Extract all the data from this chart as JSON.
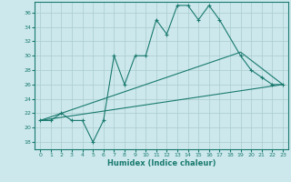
{
  "xlabel": "Humidex (Indice chaleur)",
  "xlim": [
    -0.5,
    23.5
  ],
  "ylim": [
    17,
    37.5
  ],
  "yticks": [
    18,
    20,
    22,
    24,
    26,
    28,
    30,
    32,
    34,
    36
  ],
  "xticks": [
    0,
    1,
    2,
    3,
    4,
    5,
    6,
    7,
    8,
    9,
    10,
    11,
    12,
    13,
    14,
    15,
    16,
    17,
    18,
    19,
    20,
    21,
    22,
    23
  ],
  "background_color": "#cce8ed",
  "grid_color": "#aacccc",
  "line_color": "#1a7a6e",
  "line1_x": [
    0,
    1,
    2,
    3,
    4,
    5,
    6,
    7,
    8,
    9,
    10,
    11,
    12,
    13,
    14,
    15,
    16,
    17,
    19,
    20,
    21,
    22,
    23
  ],
  "line1_y": [
    21,
    21,
    22,
    21,
    21,
    18,
    21,
    30,
    26,
    30,
    30,
    35,
    33,
    37,
    37,
    35,
    37,
    35,
    30,
    28,
    27,
    26,
    26
  ],
  "line2_x": [
    0,
    19,
    23
  ],
  "line2_y": [
    21,
    30.5,
    26
  ],
  "line3_x": [
    0,
    23
  ],
  "line3_y": [
    21,
    26
  ]
}
